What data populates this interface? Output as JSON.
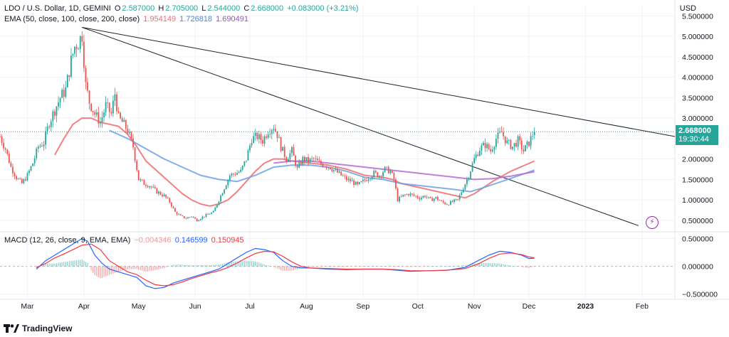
{
  "header": {
    "symbol": "LDO / U.S. Dollar, 1D, GEMINI",
    "o_label": "O",
    "o_val": "2.587000",
    "h_label": "H",
    "h_val": "2.705000",
    "l_label": "L",
    "l_val": "2.544000",
    "c_label": "C",
    "c_val": "2.668000",
    "change": "+0.083000 (+3.21%)"
  },
  "ema_legend": {
    "label": "EMA (50, close, 100, close, 200, close)",
    "v1": "1.954149",
    "v2": "1.726818",
    "v3": "1.690491"
  },
  "macd_legend": {
    "label": "MACD (12, 26, close, 9, EMA, EMA)",
    "hist": "−0.004346",
    "macd": "0.146599",
    "signal": "0.150945"
  },
  "currency": "USD",
  "price_tag": {
    "price": "2.668000",
    "countdown": "19:30:44"
  },
  "branding": {
    "name": "TradingView"
  },
  "colors": {
    "up": "#26a69a",
    "down": "#ef5350",
    "ema50": "#f06b6b",
    "ema100": "#6fa0e6",
    "ema200": "#b36bd4",
    "macd": "#2962ff",
    "signal": "#f23645"
  },
  "chart_data": {
    "type": "candlestick",
    "title": "LDO / U.S. Dollar, 1D, GEMINI",
    "y_ticks": [
      "5.500000",
      "5.000000",
      "4.500000",
      "4.000000",
      "3.500000",
      "3.000000",
      "2.500000",
      "2.000000",
      "1.500000",
      "1.000000",
      "0.500000"
    ],
    "y_tick_values": [
      5.5,
      5.0,
      4.5,
      4.0,
      3.5,
      3.0,
      2.5,
      2.0,
      1.5,
      1.0,
      0.5
    ],
    "ylim": [
      0.22,
      5.75
    ],
    "x_tick_labels": [
      "Mar",
      "Apr",
      "May",
      "Jun",
      "Jul",
      "Aug",
      "Sep",
      "Oct",
      "Nov",
      "Dec",
      "2023",
      "Feb"
    ],
    "x_tick_days": [
      15,
      46,
      76,
      107,
      137,
      168,
      199,
      229,
      260,
      290,
      321,
      352
    ],
    "x_range_days": [
      0,
      370
    ],
    "price_path": [
      [
        0,
        2.55
      ],
      [
        3,
        2.25
      ],
      [
        6,
        1.8
      ],
      [
        9,
        1.55
      ],
      [
        12,
        1.4
      ],
      [
        15,
        1.6
      ],
      [
        18,
        1.9
      ],
      [
        21,
        2.3
      ],
      [
        24,
        2.4
      ],
      [
        27,
        2.9
      ],
      [
        30,
        3.2
      ],
      [
        33,
        3.5
      ],
      [
        36,
        3.7
      ],
      [
        39,
        4.4
      ],
      [
        41,
        4.75
      ],
      [
        43,
        4.85
      ],
      [
        45,
        5.05
      ],
      [
        47,
        3.8
      ],
      [
        49,
        3.4
      ],
      [
        52,
        3.1
      ],
      [
        55,
        2.9
      ],
      [
        58,
        3.3
      ],
      [
        61,
        3.1
      ],
      [
        63,
        3.6
      ],
      [
        65,
        3.0
      ],
      [
        67,
        2.9
      ],
      [
        70,
        2.7
      ],
      [
        73,
        2.3
      ],
      [
        76,
        1.5
      ],
      [
        79,
        1.4
      ],
      [
        82,
        1.35
      ],
      [
        86,
        1.2
      ],
      [
        90,
        1.1
      ],
      [
        93,
        0.95
      ],
      [
        96,
        0.7
      ],
      [
        99,
        0.6
      ],
      [
        102,
        0.55
      ],
      [
        105,
        0.6
      ],
      [
        108,
        0.5
      ],
      [
        111,
        0.58
      ],
      [
        114,
        0.65
      ],
      [
        117,
        0.7
      ],
      [
        120,
        1.0
      ],
      [
        123,
        1.3
      ],
      [
        126,
        1.6
      ],
      [
        129,
        1.65
      ],
      [
        132,
        1.7
      ],
      [
        135,
        2.0
      ],
      [
        138,
        2.5
      ],
      [
        141,
        2.55
      ],
      [
        144,
        2.45
      ],
      [
        147,
        2.7
      ],
      [
        150,
        2.8
      ],
      [
        152,
        2.6
      ],
      [
        154,
        2.3
      ],
      [
        157,
        2.0
      ],
      [
        160,
        2.2
      ],
      [
        163,
        1.75
      ],
      [
        166,
        2.0
      ],
      [
        169,
        1.95
      ],
      [
        172,
        2.0
      ],
      [
        175,
        1.9
      ],
      [
        178,
        1.85
      ],
      [
        181,
        1.8
      ],
      [
        184,
        1.7
      ],
      [
        187,
        1.6
      ],
      [
        190,
        1.5
      ],
      [
        193,
        1.45
      ],
      [
        196,
        1.35
      ],
      [
        199,
        1.45
      ],
      [
        202,
        1.55
      ],
      [
        205,
        1.65
      ],
      [
        208,
        1.6
      ],
      [
        211,
        1.75
      ],
      [
        214,
        1.7
      ],
      [
        216,
        1.5
      ],
      [
        218,
        1.0
      ],
      [
        221,
        1.1
      ],
      [
        224,
        1.15
      ],
      [
        227,
        1.1
      ],
      [
        230,
        1.05
      ],
      [
        233,
        1.1
      ],
      [
        236,
        1.0
      ],
      [
        239,
        1.05
      ],
      [
        242,
        0.95
      ],
      [
        245,
        0.9
      ],
      [
        248,
        0.95
      ],
      [
        251,
        1.0
      ],
      [
        254,
        1.3
      ],
      [
        257,
        1.6
      ],
      [
        260,
        2.0
      ],
      [
        263,
        2.25
      ],
      [
        266,
        2.35
      ],
      [
        269,
        2.2
      ],
      [
        272,
        2.5
      ],
      [
        275,
        2.65
      ],
      [
        278,
        2.4
      ],
      [
        281,
        2.3
      ],
      [
        284,
        2.45
      ],
      [
        287,
        2.2
      ],
      [
        290,
        2.4
      ],
      [
        292,
        2.6
      ],
      [
        293,
        2.668
      ]
    ],
    "series": [
      {
        "name": "EMA 50",
        "path": [
          [
            30,
            2.1
          ],
          [
            35,
            2.5
          ],
          [
            40,
            2.85
          ],
          [
            45,
            3.0
          ],
          [
            50,
            3.0
          ],
          [
            55,
            2.9
          ],
          [
            60,
            2.85
          ],
          [
            65,
            2.8
          ],
          [
            70,
            2.6
          ],
          [
            75,
            2.3
          ],
          [
            80,
            1.95
          ],
          [
            85,
            1.75
          ],
          [
            90,
            1.55
          ],
          [
            95,
            1.35
          ],
          [
            100,
            1.15
          ],
          [
            105,
            1.0
          ],
          [
            110,
            0.9
          ],
          [
            115,
            0.85
          ],
          [
            120,
            0.9
          ],
          [
            125,
            1.0
          ],
          [
            130,
            1.2
          ],
          [
            135,
            1.45
          ],
          [
            140,
            1.7
          ],
          [
            145,
            1.9
          ],
          [
            150,
            2.0
          ],
          [
            155,
            2.0
          ],
          [
            160,
            1.95
          ],
          [
            170,
            1.9
          ],
          [
            180,
            1.85
          ],
          [
            190,
            1.75
          ],
          [
            200,
            1.6
          ],
          [
            210,
            1.55
          ],
          [
            215,
            1.5
          ],
          [
            220,
            1.4
          ],
          [
            230,
            1.3
          ],
          [
            240,
            1.2
          ],
          [
            250,
            1.1
          ],
          [
            255,
            1.05
          ],
          [
            260,
            1.15
          ],
          [
            270,
            1.45
          ],
          [
            280,
            1.7
          ],
          [
            293,
            1.95
          ]
        ]
      },
      {
        "name": "EMA 100",
        "path": [
          [
            60,
            2.7
          ],
          [
            70,
            2.5
          ],
          [
            80,
            2.25
          ],
          [
            90,
            2.0
          ],
          [
            100,
            1.8
          ],
          [
            110,
            1.6
          ],
          [
            120,
            1.5
          ],
          [
            130,
            1.45
          ],
          [
            140,
            1.6
          ],
          [
            150,
            1.8
          ],
          [
            160,
            1.85
          ],
          [
            170,
            1.85
          ],
          [
            180,
            1.8
          ],
          [
            190,
            1.7
          ],
          [
            200,
            1.55
          ],
          [
            210,
            1.5
          ],
          [
            220,
            1.4
          ],
          [
            230,
            1.35
          ],
          [
            240,
            1.3
          ],
          [
            250,
            1.25
          ],
          [
            258,
            1.2
          ],
          [
            265,
            1.3
          ],
          [
            275,
            1.45
          ],
          [
            285,
            1.6
          ],
          [
            293,
            1.73
          ]
        ]
      },
      {
        "name": "EMA 200",
        "path": [
          [
            150,
            1.9
          ],
          [
            160,
            1.95
          ],
          [
            170,
            1.95
          ],
          [
            180,
            1.9
          ],
          [
            190,
            1.85
          ],
          [
            200,
            1.8
          ],
          [
            210,
            1.75
          ],
          [
            220,
            1.7
          ],
          [
            230,
            1.65
          ],
          [
            240,
            1.6
          ],
          [
            250,
            1.55
          ],
          [
            260,
            1.5
          ],
          [
            270,
            1.52
          ],
          [
            280,
            1.58
          ],
          [
            293,
            1.69
          ]
        ]
      }
    ],
    "trendlines": [
      {
        "from": [
          45,
          5.22
        ],
        "to": [
          370,
          2.55
        ]
      },
      {
        "from": [
          45,
          5.22
        ],
        "to": [
          350,
          0.37
        ]
      }
    ],
    "macd": {
      "y_ticks": [
        "0.500000",
        "0.000000",
        "−0.500000"
      ],
      "y_tick_values": [
        0.5,
        0.0,
        -0.5
      ],
      "ylim": [
        -0.58,
        0.62
      ],
      "macd_path": [
        [
          20,
          -0.05
        ],
        [
          25,
          0.1
        ],
        [
          30,
          0.2
        ],
        [
          35,
          0.3
        ],
        [
          40,
          0.4
        ],
        [
          45,
          0.5
        ],
        [
          48,
          0.45
        ],
        [
          52,
          0.2
        ],
        [
          56,
          0.05
        ],
        [
          60,
          -0.05
        ],
        [
          65,
          -0.1
        ],
        [
          70,
          -0.15
        ],
        [
          75,
          -0.2
        ],
        [
          80,
          -0.35
        ],
        [
          85,
          -0.4
        ],
        [
          90,
          -0.38
        ],
        [
          95,
          -0.3
        ],
        [
          100,
          -0.25
        ],
        [
          105,
          -0.2
        ],
        [
          110,
          -0.15
        ],
        [
          115,
          -0.1
        ],
        [
          120,
          -0.05
        ],
        [
          125,
          0.05
        ],
        [
          130,
          0.15
        ],
        [
          135,
          0.25
        ],
        [
          140,
          0.32
        ],
        [
          145,
          0.3
        ],
        [
          150,
          0.25
        ],
        [
          155,
          0.1
        ],
        [
          160,
          0.0
        ],
        [
          165,
          -0.03
        ],
        [
          170,
          -0.03
        ],
        [
          180,
          -0.05
        ],
        [
          190,
          -0.06
        ],
        [
          200,
          -0.05
        ],
        [
          210,
          -0.05
        ],
        [
          218,
          -0.07
        ],
        [
          225,
          -0.09
        ],
        [
          235,
          -0.08
        ],
        [
          245,
          -0.07
        ],
        [
          255,
          -0.02
        ],
        [
          262,
          0.1
        ],
        [
          268,
          0.2
        ],
        [
          274,
          0.27
        ],
        [
          280,
          0.25
        ],
        [
          286,
          0.2
        ],
        [
          290,
          0.14
        ],
        [
          293,
          0.147
        ]
      ],
      "signal_path": [
        [
          20,
          -0.02
        ],
        [
          25,
          0.05
        ],
        [
          30,
          0.15
        ],
        [
          35,
          0.22
        ],
        [
          40,
          0.3
        ],
        [
          45,
          0.38
        ],
        [
          50,
          0.4
        ],
        [
          55,
          0.3
        ],
        [
          60,
          0.1
        ],
        [
          65,
          0.0
        ],
        [
          70,
          -0.1
        ],
        [
          75,
          -0.15
        ],
        [
          80,
          -0.25
        ],
        [
          85,
          -0.33
        ],
        [
          90,
          -0.35
        ],
        [
          95,
          -0.33
        ],
        [
          100,
          -0.28
        ],
        [
          105,
          -0.22
        ],
        [
          110,
          -0.17
        ],
        [
          115,
          -0.12
        ],
        [
          120,
          -0.08
        ],
        [
          125,
          -0.02
        ],
        [
          130,
          0.06
        ],
        [
          135,
          0.15
        ],
        [
          140,
          0.23
        ],
        [
          145,
          0.27
        ],
        [
          150,
          0.26
        ],
        [
          155,
          0.18
        ],
        [
          160,
          0.08
        ],
        [
          165,
          0.0
        ],
        [
          170,
          -0.03
        ],
        [
          180,
          -0.04
        ],
        [
          190,
          -0.05
        ],
        [
          200,
          -0.05
        ],
        [
          210,
          -0.05
        ],
        [
          218,
          -0.06
        ],
        [
          225,
          -0.08
        ],
        [
          235,
          -0.08
        ],
        [
          245,
          -0.07
        ],
        [
          255,
          -0.04
        ],
        [
          262,
          0.04
        ],
        [
          268,
          0.14
        ],
        [
          274,
          0.22
        ],
        [
          280,
          0.24
        ],
        [
          286,
          0.21
        ],
        [
          290,
          0.17
        ],
        [
          293,
          0.151
        ]
      ]
    }
  }
}
